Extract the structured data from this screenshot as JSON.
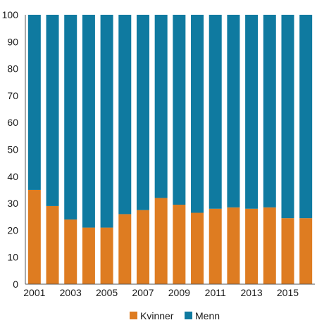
{
  "chart_data": {
    "type": "bar",
    "stacked": true,
    "categories": [
      "2001",
      "2002",
      "2003",
      "2004",
      "2005",
      "2006",
      "2007",
      "2008",
      "2009",
      "2010",
      "2011",
      "2012",
      "2013",
      "2014",
      "2015",
      "2016"
    ],
    "x_tick_labels": [
      "2001",
      "2003",
      "2005",
      "2007",
      "2009",
      "2011",
      "2013",
      "2015"
    ],
    "series": [
      {
        "name": "Kvinner",
        "color": "#de7c21",
        "values": [
          35,
          29,
          24,
          21,
          21,
          26,
          27.5,
          32,
          29.5,
          26.5,
          28,
          28.5,
          28,
          28.5,
          24.5,
          24.5
        ]
      },
      {
        "name": "Menn",
        "color": "#0f7aa0",
        "values": [
          65,
          71,
          76,
          79,
          79,
          74,
          72.5,
          68,
          70.5,
          73.5,
          72,
          71.5,
          72,
          71.5,
          75.5,
          75.5
        ]
      }
    ],
    "ylim": [
      0,
      100
    ],
    "y_ticks": [
      0,
      10,
      20,
      30,
      40,
      50,
      60,
      70,
      80,
      90,
      100
    ],
    "title": "",
    "xlabel": "",
    "ylabel": "",
    "legend_position": "bottom",
    "grid": false
  }
}
